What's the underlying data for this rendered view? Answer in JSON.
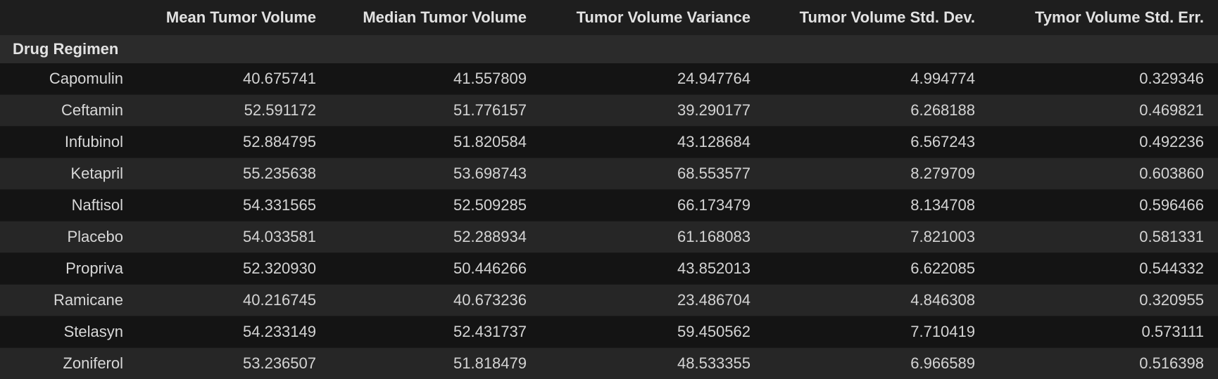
{
  "table": {
    "columns": [
      "Mean Tumor Volume",
      "Median Tumor Volume",
      "Tumor Volume Variance",
      "Tumor Volume Std. Dev.",
      "Tymor Volume Std. Err."
    ],
    "index_name": "Drug Regimen",
    "rows": [
      {
        "label": "Capomulin",
        "values": [
          "40.675741",
          "41.557809",
          "24.947764",
          "4.994774",
          "0.329346"
        ]
      },
      {
        "label": "Ceftamin",
        "values": [
          "52.591172",
          "51.776157",
          "39.290177",
          "6.268188",
          "0.469821"
        ]
      },
      {
        "label": "Infubinol",
        "values": [
          "52.884795",
          "51.820584",
          "43.128684",
          "6.567243",
          "0.492236"
        ]
      },
      {
        "label": "Ketapril",
        "values": [
          "55.235638",
          "53.698743",
          "68.553577",
          "8.279709",
          "0.603860"
        ]
      },
      {
        "label": "Naftisol",
        "values": [
          "54.331565",
          "52.509285",
          "66.173479",
          "8.134708",
          "0.596466"
        ]
      },
      {
        "label": "Placebo",
        "values": [
          "54.033581",
          "52.288934",
          "61.168083",
          "7.821003",
          "0.581331"
        ]
      },
      {
        "label": "Propriva",
        "values": [
          "52.320930",
          "50.446266",
          "43.852013",
          "6.622085",
          "0.544332"
        ]
      },
      {
        "label": "Ramicane",
        "values": [
          "40.216745",
          "40.673236",
          "23.486704",
          "4.846308",
          "0.320955"
        ]
      },
      {
        "label": "Stelasyn",
        "values": [
          "54.233149",
          "52.431737",
          "59.450562",
          "7.710419",
          "0.573111"
        ]
      },
      {
        "label": "Zoniferol",
        "values": [
          "53.236507",
          "51.818479",
          "48.533355",
          "6.966589",
          "0.516398"
        ]
      }
    ]
  },
  "chart_data": {
    "type": "table",
    "index_name": "Drug Regimen",
    "columns": [
      "Mean Tumor Volume",
      "Median Tumor Volume",
      "Tumor Volume Variance",
      "Tumor Volume Std. Dev.",
      "Tymor Volume Std. Err."
    ],
    "rows": [
      {
        "label": "Capomulin",
        "values": [
          40.675741,
          41.557809,
          24.947764,
          4.994774,
          0.329346
        ]
      },
      {
        "label": "Ceftamin",
        "values": [
          52.591172,
          51.776157,
          39.290177,
          6.268188,
          0.469821
        ]
      },
      {
        "label": "Infubinol",
        "values": [
          52.884795,
          51.820584,
          43.128684,
          6.567243,
          0.492236
        ]
      },
      {
        "label": "Ketapril",
        "values": [
          55.235638,
          53.698743,
          68.553577,
          8.279709,
          0.60386
        ]
      },
      {
        "label": "Naftisol",
        "values": [
          54.331565,
          52.509285,
          66.173479,
          8.134708,
          0.596466
        ]
      },
      {
        "label": "Placebo",
        "values": [
          54.033581,
          52.288934,
          61.168083,
          7.821003,
          0.581331
        ]
      },
      {
        "label": "Propriva",
        "values": [
          52.32093,
          50.446266,
          43.852013,
          6.622085,
          0.544332
        ]
      },
      {
        "label": "Ramicane",
        "values": [
          40.216745,
          40.673236,
          23.486704,
          4.846308,
          0.320955
        ]
      },
      {
        "label": "Stelasyn",
        "values": [
          54.233149,
          52.431737,
          59.450562,
          7.710419,
          0.573111
        ]
      },
      {
        "label": "Zoniferol",
        "values": [
          53.236507,
          51.818479,
          48.533355,
          6.966589,
          0.516398
        ]
      }
    ]
  }
}
